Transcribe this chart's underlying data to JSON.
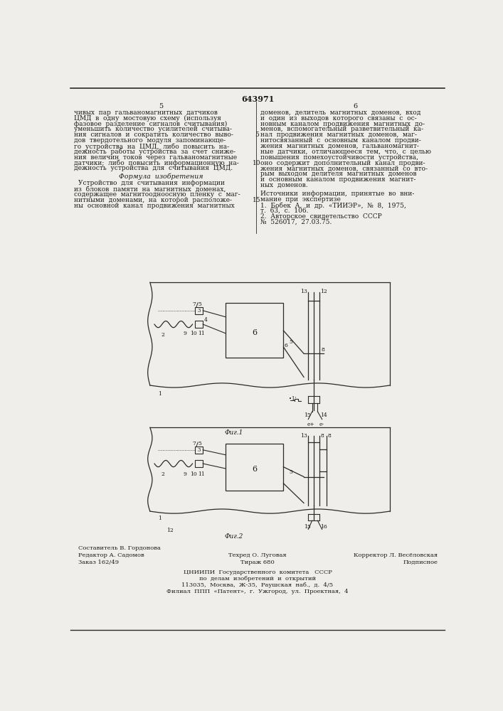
{
  "patent_number": "643971",
  "left_col_text": [
    "чивых  пар  гальваномагнитных  датчиков",
    "ЦМД  в  одну  мостовую  схему  (используя",
    "фазовое  разделение  сигналов  считывания)",
    "уменьшить  количество  усилителей  считыва-",
    "ния  сигналов  и  сократить  количество  выво-",
    "дов  твердотельного  модуля  запоминающе-",
    "го  устройства  на  ЦМД,  либо  повысить  на-",
    "дежность  работы  устройства  за  счет  сниже-",
    "ния  величин  токов  через  гальваномагнитные",
    "датчики;  либо  повысить  информационную  на-",
    "дежность  устройства  для  считывания  ЦМД."
  ],
  "formula_title": "Формула  изобретения",
  "formula_text": [
    "Устройство  для  считывания  информации",
    "из  блоков  памяти  на  магнитных  доменах,",
    "содержащее  магнитоодноосную  пленку  с  маг-",
    "нитными  доменами,  на  которой  расположе-",
    "ны  основной  канал  продвижения  магнитных"
  ],
  "right_col_text": [
    "доменов,  делитель  магнитных  доменов,  вход",
    "и  один  из  выходов  которого  связаны  с  ос-",
    "новным  каналом  продвижения  магнитных  до-",
    "менов,  вспомогательный  разветвительный  ка-",
    "нал  продвижения  магнитных  доменов,  маг-",
    "нитосвязанный  с  основным  каналом  продви-",
    "жения  магнитных  доменов,  гальваномагнит-",
    "ные  датчики,  отличающееся  тем,  что,  с  целью",
    "повышения  помехоустойчивости  устройства,",
    "оно  содержит  дополнительный  канал  продви-",
    "жения  магнитных  доменов,  связанный  со  вто-",
    "рым  выходом  делителя  магнитных  доменов",
    "и  основным  каналом  продвижения  магнит-",
    "ных  доменов."
  ],
  "sources_title": "Источники  информации,  принятые  во  вни-",
  "sources_text": [
    "мание  при  экспертизе",
    "1.  Бобек  А.  и  др.  «ТИИЭР»,  №  8,  1975,",
    "т.  63,  с.  106.",
    "2.  Авторское  свидетельство  СССР",
    "№  526017,  27.03.75."
  ],
  "fig1_caption": "Фиг.1",
  "fig2_caption": "Фиг.2",
  "bottom_left1": "Редактор А. Садомов",
  "bottom_center1": "Составитель В. Гордонова",
  "bottom_right1": "Корректор Л. Весёловская",
  "bottom_left2": "Заказ 162/49",
  "bottom_center2": "Техред О. Луговая",
  "bottom_right2": "Подписное",
  "bottom_center3": "Тираж 680",
  "cniipи_text": [
    "ЦНИИПИ  Государственного  комитета   СССР",
    "по  делам  изобретений  и  открытий",
    "113035,  Москва,  Ж-35,  Раушская  наб.,  д.  4/5",
    "Филиал  ППП  «Патент»,  г.  Ужгород,  ул.  Проектная,  4"
  ],
  "bg_color": "#f0eeea",
  "text_color": "#1a1a1a",
  "line_color": "#2a2a2a"
}
